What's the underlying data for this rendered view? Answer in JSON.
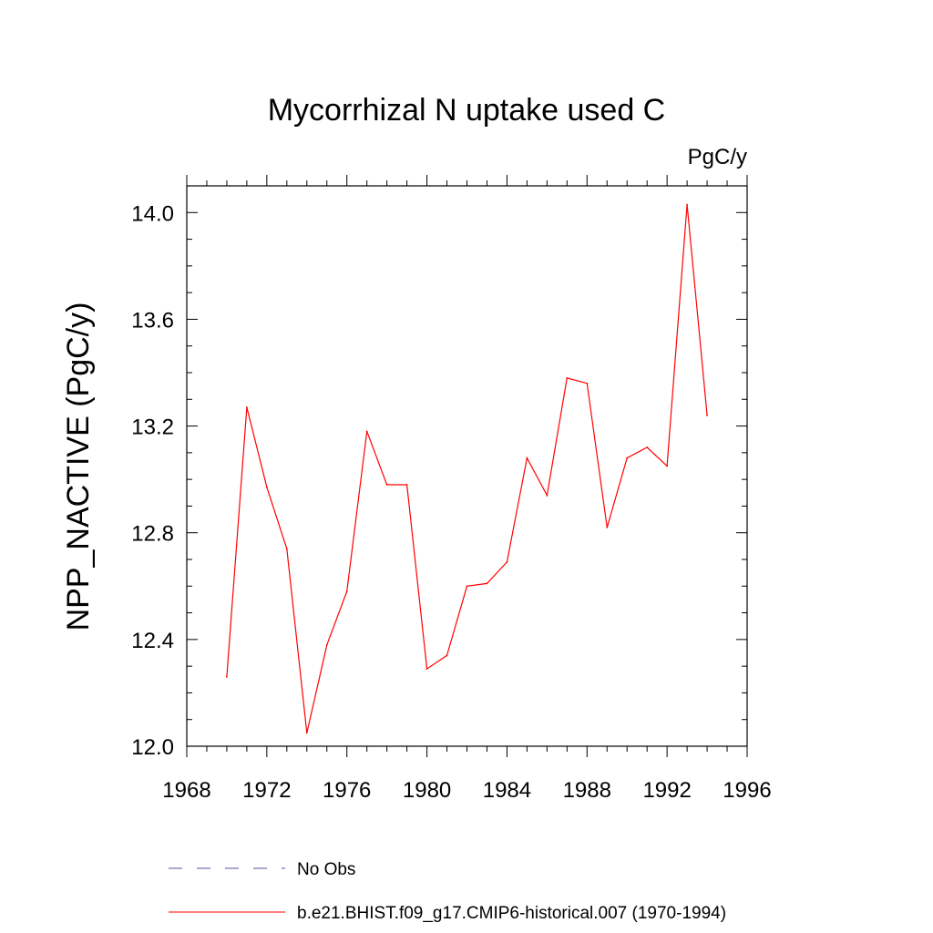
{
  "chart_data": {
    "type": "line",
    "title": "Mycorrhizal N uptake used C",
    "units_label": "PgC/y",
    "ylabel": "NPP_NACTIVE  (PgC/y)",
    "xlabel": "",
    "xlim": [
      1968,
      1996
    ],
    "ylim": [
      12.0,
      14.1
    ],
    "x_ticks": [
      1968,
      1972,
      1976,
      1980,
      1984,
      1988,
      1992,
      1996
    ],
    "x_tick_labels": [
      "1968",
      "1972",
      "1976",
      "1980",
      "1984",
      "1988",
      "1992",
      "1996"
    ],
    "y_ticks": [
      12.0,
      12.4,
      12.8,
      13.2,
      13.6,
      14.0
    ],
    "y_tick_labels": [
      "12.0",
      "12.4",
      "12.8",
      "13.2",
      "13.6",
      "14.0"
    ],
    "grid": false,
    "legend_position": "bottom",
    "series": [
      {
        "name": "No Obs",
        "color": "#5050a0",
        "dashed": true,
        "x": [],
        "values": []
      },
      {
        "name": "b.e21.BHIST.f09_g17.CMIP6-historical.007 (1970-1994)",
        "color": "#ff0000",
        "dashed": false,
        "x": [
          1970,
          1971,
          1972,
          1973,
          1974,
          1975,
          1976,
          1977,
          1978,
          1979,
          1980,
          1981,
          1982,
          1983,
          1984,
          1985,
          1986,
          1987,
          1988,
          1989,
          1990,
          1991,
          1992,
          1993,
          1994
        ],
        "values": [
          12.26,
          13.27,
          12.97,
          12.74,
          12.05,
          12.38,
          12.58,
          13.18,
          12.98,
          12.98,
          12.29,
          12.34,
          12.6,
          12.61,
          12.69,
          13.08,
          12.94,
          13.38,
          13.36,
          12.82,
          13.08,
          13.12,
          13.05,
          14.03,
          13.24
        ]
      }
    ]
  }
}
